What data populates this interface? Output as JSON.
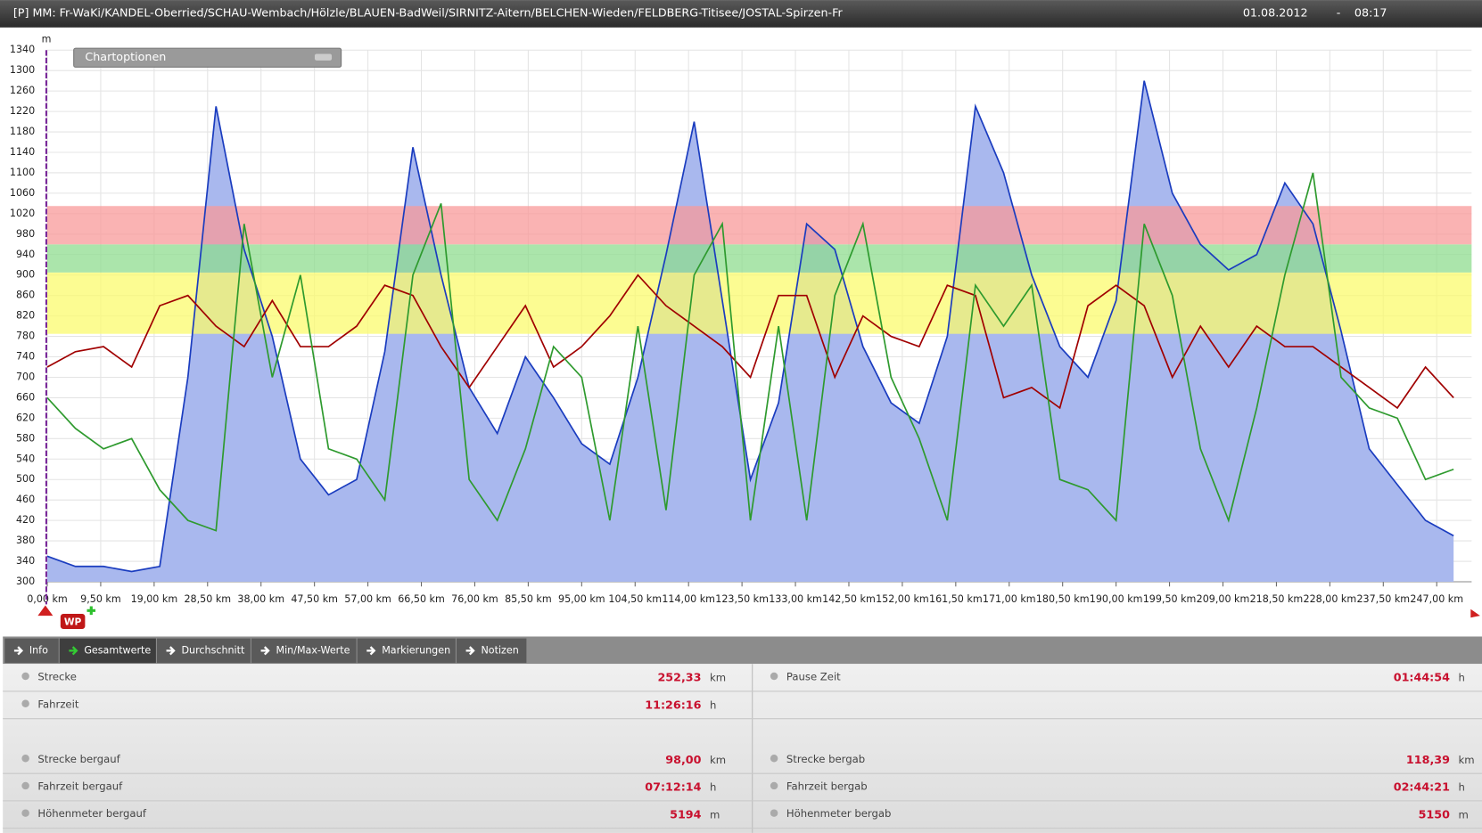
{
  "header": {
    "title": "[P] MM: Fr-WaKi/KANDEL-Oberried/SCHAU-Wembach/Hölzle/BLAUEN-BadWeil/SIRNITZ-Aitern/BELCHEN-Wieden/FELDBERG-Titisee/JOSTAL-Spirzen-Fr",
    "date": "01.08.2012",
    "separator": "-",
    "time": "08:17"
  },
  "chart_options": "Chartoptionen",
  "marker": "WP",
  "chart_data": {
    "type": "line",
    "y_unit": "m",
    "xlim": [
      0,
      253.2
    ],
    "ylim": [
      300,
      1340
    ],
    "yticks": [
      300,
      340,
      380,
      420,
      460,
      500,
      540,
      580,
      620,
      660,
      700,
      740,
      780,
      820,
      860,
      900,
      940,
      980,
      1020,
      1060,
      1100,
      1140,
      1180,
      1220,
      1260,
      1300,
      1340
    ],
    "xticks": [
      {
        "value": 0,
        "label": "0,00 km"
      },
      {
        "value": 9.5,
        "label": "9,50 km"
      },
      {
        "value": 19,
        "label": "19,00 km"
      },
      {
        "value": 28.5,
        "label": "28,50 km"
      },
      {
        "value": 38,
        "label": "38,00 km"
      },
      {
        "value": 47.5,
        "label": "47,50 km"
      },
      {
        "value": 57,
        "label": "57,00 km"
      },
      {
        "value": 66.5,
        "label": "66,50 km"
      },
      {
        "value": 76,
        "label": "76,00 km"
      },
      {
        "value": 85.5,
        "label": "85,50 km"
      },
      {
        "value": 95,
        "label": "95,00 km"
      },
      {
        "value": 104.5,
        "label": "104,50 km"
      },
      {
        "value": 114,
        "label": "114,00 km"
      },
      {
        "value": 123.5,
        "label": "123,50 km"
      },
      {
        "value": 133,
        "label": "133,00 km"
      },
      {
        "value": 142.5,
        "label": "142,50 km"
      },
      {
        "value": 152,
        "label": "152,00 km"
      },
      {
        "value": 161.5,
        "label": "161,50 km"
      },
      {
        "value": 171,
        "label": "171,00 km"
      },
      {
        "value": 180.5,
        "label": "180,50 km"
      },
      {
        "value": 190,
        "label": "190,00 km"
      },
      {
        "value": 199.5,
        "label": "199,50 km"
      },
      {
        "value": 209,
        "label": "209,00 km"
      },
      {
        "value": 218.5,
        "label": "218,50 km"
      },
      {
        "value": 228,
        "label": "228,00 km"
      },
      {
        "value": 237.5,
        "label": "237,50 km"
      },
      {
        "value": 247,
        "label": "247,00 km"
      }
    ],
    "grid": true,
    "zones": [
      {
        "from": 785,
        "to": 905,
        "color": "#fbfb6e"
      },
      {
        "from": 905,
        "to": 960,
        "color": "#8fdc8f"
      },
      {
        "from": 960,
        "to": 1035,
        "color": "#f89a9a"
      }
    ],
    "x": [
      0,
      5,
      10,
      15,
      20,
      25,
      30,
      35,
      40,
      45,
      50,
      55,
      60,
      65,
      70,
      75,
      80,
      85,
      90,
      95,
      100,
      105,
      110,
      115,
      120,
      125,
      130,
      135,
      140,
      145,
      150,
      155,
      160,
      165,
      170,
      175,
      180,
      185,
      190,
      195,
      200,
      205,
      210,
      215,
      220,
      225,
      230,
      235,
      240,
      245,
      250
    ],
    "series": [
      {
        "color": "#1a3cbf",
        "fill": "#a9b8ee",
        "values": [
          350,
          330,
          330,
          320,
          330,
          700,
          1230,
          950,
          780,
          540,
          470,
          500,
          750,
          1150,
          900,
          680,
          590,
          740,
          660,
          570,
          530,
          700,
          940,
          1200,
          850,
          500,
          650,
          1000,
          950,
          760,
          650,
          610,
          780,
          1230,
          1100,
          900,
          760,
          700,
          850,
          1280,
          1060,
          960,
          910,
          940,
          1080,
          1000,
          790,
          560,
          490,
          420,
          390
        ]
      },
      {
        "color": "#a00000",
        "values": [
          720,
          750,
          760,
          720,
          840,
          860,
          800,
          760,
          850,
          760,
          760,
          800,
          880,
          860,
          760,
          680,
          760,
          840,
          720,
          760,
          820,
          900,
          840,
          800,
          760,
          700,
          860,
          860,
          700,
          820,
          780,
          760,
          880,
          860,
          660,
          680,
          640,
          840,
          880,
          840,
          700,
          800,
          720,
          800,
          760,
          760,
          720,
          680,
          640,
          720,
          660
        ]
      },
      {
        "color": "#2e9a2e",
        "values": [
          660,
          600,
          560,
          580,
          480,
          420,
          400,
          1000,
          700,
          900,
          560,
          540,
          460,
          900,
          1040,
          500,
          420,
          560,
          760,
          700,
          420,
          800,
          440,
          900,
          1000,
          420,
          800,
          420,
          860,
          1000,
          700,
          580,
          420,
          880,
          800,
          880,
          500,
          480,
          420,
          1000,
          860,
          560,
          420,
          640,
          900,
          1100,
          700,
          640,
          620,
          500,
          520
        ]
      }
    ]
  },
  "tabs": [
    "Info",
    "Gesamtwerte",
    "Durchschnitt",
    "Min/Max-Werte",
    "Markierungen",
    "Notizen"
  ],
  "stats": {
    "left": [
      {
        "label": "Strecke",
        "value": "252,33",
        "unit": "km"
      },
      {
        "label": "Fahrzeit",
        "value": "11:26:16",
        "unit": "h"
      },
      {
        "label": "Strecke bergauf",
        "value": "98,00",
        "unit": "km"
      },
      {
        "label": "Fahrzeit bergauf",
        "value": "07:12:14",
        "unit": "h"
      },
      {
        "label": "Höhenmeter bergauf",
        "value": "5194",
        "unit": "m"
      }
    ],
    "right": [
      {
        "label": "Pause Zeit",
        "value": "01:44:54",
        "unit": "h"
      },
      {
        "label": "Strecke bergab",
        "value": "118,39",
        "unit": "km"
      },
      {
        "label": "Fahrzeit bergab",
        "value": "02:44:21",
        "unit": "h"
      },
      {
        "label": "Höhenmeter bergab",
        "value": "5150",
        "unit": "m"
      }
    ]
  }
}
